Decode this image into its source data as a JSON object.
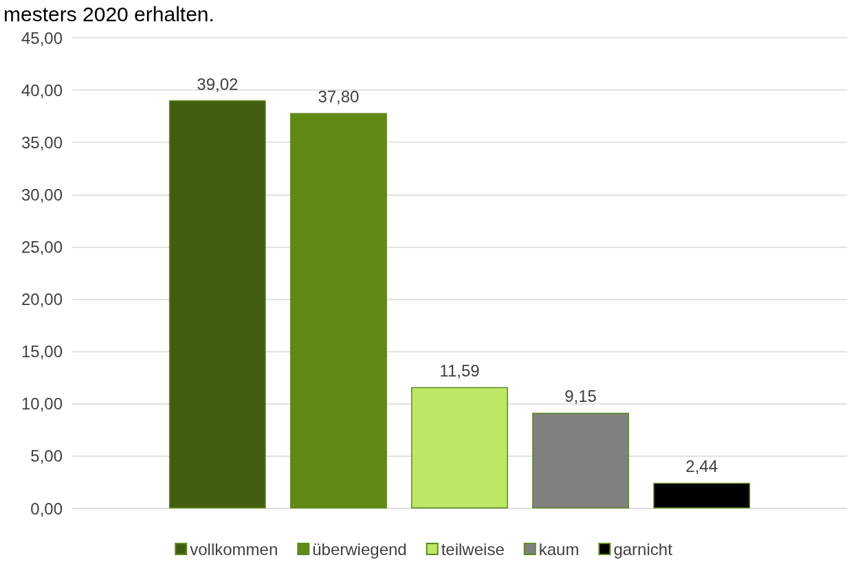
{
  "chart_data": {
    "type": "bar",
    "title": "mesters 2020 erhalten.",
    "categories": [
      null
    ],
    "series": [
      {
        "name": "vollkommen",
        "color": "#415e0f",
        "values": [
          39.02
        ],
        "value_labels": [
          "39,02"
        ]
      },
      {
        "name": "überwiegend",
        "color": "#638915",
        "values": [
          37.8
        ],
        "value_labels": [
          "37,80"
        ]
      },
      {
        "name": "teilweise",
        "color": "#bce865",
        "values": [
          11.59
        ],
        "value_labels": [
          "11,59"
        ]
      },
      {
        "name": "kaum",
        "color": "#808080",
        "values": [
          9.15
        ],
        "value_labels": [
          "9,15"
        ]
      },
      {
        "name": "garnicht",
        "color": "#000000",
        "values": [
          2.44
        ],
        "value_labels": [
          "2,44"
        ]
      }
    ],
    "ylim": [
      0,
      45
    ],
    "yticks": [
      {
        "value": 0,
        "label": "0,00"
      },
      {
        "value": 5,
        "label": "5,00"
      },
      {
        "value": 10,
        "label": "10,00"
      },
      {
        "value": 15,
        "label": "15,00"
      },
      {
        "value": 20,
        "label": "20,00"
      },
      {
        "value": 25,
        "label": "25,00"
      },
      {
        "value": 30,
        "label": "30,00"
      },
      {
        "value": 35,
        "label": "35,00"
      },
      {
        "value": 40,
        "label": "40,00"
      },
      {
        "value": 45,
        "label": "45,00"
      }
    ],
    "grid": "y",
    "legend": "bottom"
  }
}
